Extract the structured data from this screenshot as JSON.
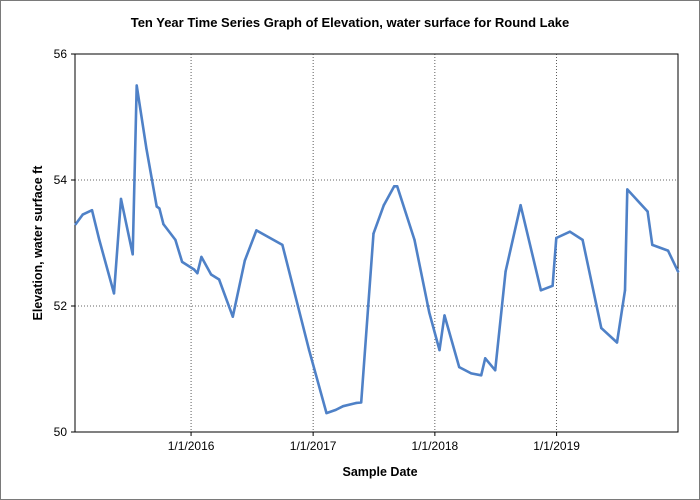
{
  "chart_data": {
    "type": "line",
    "title": "Ten Year Time Series Graph of Elevation, water surface for Round Lake",
    "xlabel": "Sample Date",
    "ylabel": "Elevation, water surface ft",
    "xlim": [
      "2015-01-18",
      "2019-12-31"
    ],
    "ylim": [
      50,
      56
    ],
    "y_ticks": [
      50,
      52,
      54,
      56
    ],
    "x_ticks": [
      {
        "date": "2016-01-01",
        "label": "1/1/2016"
      },
      {
        "date": "2017-01-01",
        "label": "1/1/2017"
      },
      {
        "date": "2018-01-01",
        "label": "1/1/2018"
      },
      {
        "date": "2019-01-01",
        "label": "1/1/2019"
      }
    ],
    "grid": true,
    "line_color": "#4f81c7",
    "series": [
      {
        "points": [
          [
            "2015-01-20",
            53.3
          ],
          [
            "2015-02-10",
            53.45
          ],
          [
            "2015-03-10",
            53.52
          ],
          [
            "2015-04-01",
            53.05
          ],
          [
            "2015-05-15",
            52.2
          ],
          [
            "2015-06-05",
            53.7
          ],
          [
            "2015-07-10",
            52.82
          ],
          [
            "2015-07-22",
            55.5
          ],
          [
            "2015-08-20",
            54.5
          ],
          [
            "2015-09-20",
            53.58
          ],
          [
            "2015-09-28",
            53.55
          ],
          [
            "2015-10-10",
            53.3
          ],
          [
            "2015-11-15",
            53.05
          ],
          [
            "2015-12-05",
            52.7
          ],
          [
            "2016-01-10",
            52.58
          ],
          [
            "2016-01-20",
            52.52
          ],
          [
            "2016-02-01",
            52.78
          ],
          [
            "2016-03-01",
            52.5
          ],
          [
            "2016-03-25",
            52.42
          ],
          [
            "2016-05-05",
            51.83
          ],
          [
            "2016-06-10",
            52.72
          ],
          [
            "2016-07-15",
            53.2
          ],
          [
            "2016-10-01",
            52.97
          ],
          [
            "2016-12-20",
            51.3
          ],
          [
            "2017-02-10",
            50.3
          ],
          [
            "2017-03-10",
            50.35
          ],
          [
            "2017-04-01",
            50.41
          ],
          [
            "2017-05-10",
            50.46
          ],
          [
            "2017-05-25",
            50.47
          ],
          [
            "2017-07-01",
            53.15
          ],
          [
            "2017-08-01",
            53.6
          ],
          [
            "2017-09-01",
            53.9
          ],
          [
            "2017-09-10",
            53.9
          ],
          [
            "2017-11-01",
            53.05
          ],
          [
            "2017-12-15",
            51.9
          ],
          [
            "2018-01-15",
            51.3
          ],
          [
            "2018-01-30",
            51.85
          ],
          [
            "2018-03-15",
            51.03
          ],
          [
            "2018-04-20",
            50.93
          ],
          [
            "2018-05-20",
            50.9
          ],
          [
            "2018-06-01",
            51.17
          ],
          [
            "2018-07-01",
            50.98
          ],
          [
            "2018-08-01",
            52.55
          ],
          [
            "2018-09-15",
            53.6
          ],
          [
            "2018-11-15",
            52.25
          ],
          [
            "2018-12-20",
            52.32
          ],
          [
            "2018-12-31",
            53.08
          ],
          [
            "2019-02-10",
            53.18
          ],
          [
            "2019-03-20",
            53.05
          ],
          [
            "2019-05-15",
            51.65
          ],
          [
            "2019-07-01",
            51.42
          ],
          [
            "2019-07-25",
            52.25
          ],
          [
            "2019-08-01",
            53.85
          ],
          [
            "2019-10-01",
            53.5
          ],
          [
            "2019-10-15",
            52.97
          ],
          [
            "2019-12-01",
            52.88
          ],
          [
            "2019-12-31",
            52.55
          ]
        ]
      }
    ]
  }
}
